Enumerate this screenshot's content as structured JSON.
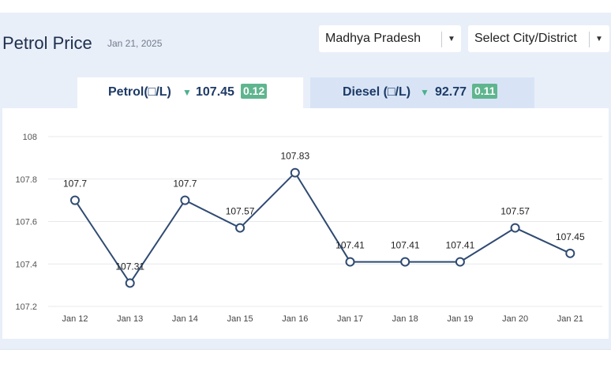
{
  "header": {
    "title": "Petrol Price",
    "date": "Jan 21, 2025"
  },
  "filters": {
    "state": "Madhya Pradesh",
    "city": "Select City/District"
  },
  "tabs": [
    {
      "label": "Petrol(□/L)",
      "price": "107.45",
      "change": "0.12",
      "trend": "down"
    },
    {
      "label": "Diesel (□/L)",
      "price": "92.77",
      "change": "0.11",
      "trend": "down"
    }
  ],
  "colors": {
    "line": "#2f4a72",
    "change_badge": "#5fb58e",
    "down_arrow": "#4caf8f",
    "panel": "#e9eff9"
  },
  "chart_data": {
    "type": "line",
    "categories": [
      "Jan 12",
      "Jan 13",
      "Jan 14",
      "Jan 15",
      "Jan 16",
      "Jan 17",
      "Jan 18",
      "Jan 19",
      "Jan 20",
      "Jan 21"
    ],
    "series": [
      {
        "values": [
          107.7,
          107.31,
          107.7,
          107.57,
          107.83,
          107.41,
          107.41,
          107.41,
          107.57,
          107.45
        ]
      }
    ],
    "data_labels": [
      "107.7",
      "107.31",
      "107.7",
      "107.57",
      "107.83",
      "107.41",
      "107.41",
      "107.41",
      "107.57",
      "107.45"
    ],
    "yticks": [
      "107.2",
      "107.4",
      "107.6",
      "107.8",
      "108"
    ],
    "ylim": [
      107.2,
      108
    ],
    "grid": true
  }
}
